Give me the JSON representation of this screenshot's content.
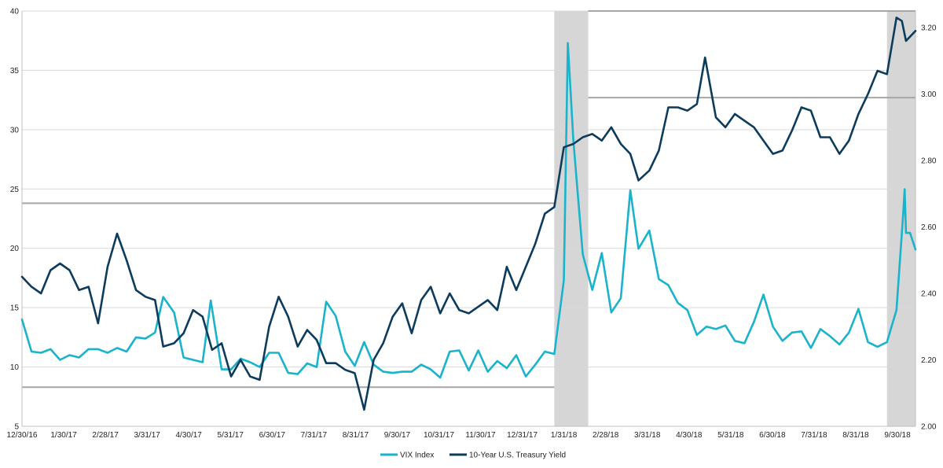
{
  "chart_data": {
    "type": "line",
    "title": "",
    "xlabel": "",
    "ylabel": "",
    "x_tick_labels": [
      "12/30/16",
      "1/30/17",
      "2/28/17",
      "3/31/17",
      "4/30/17",
      "5/31/17",
      "6/30/17",
      "7/31/17",
      "8/31/17",
      "9/30/17",
      "10/31/17",
      "11/30/17",
      "12/31/17",
      "1/31/18",
      "2/28/18",
      "3/31/18",
      "4/30/18",
      "5/31/18",
      "6/30/18",
      "7/31/18",
      "8/31/18",
      "9/30/18"
    ],
    "x_range": [
      "2016-12-30",
      "2018-10-19"
    ],
    "y_left": {
      "min": 5,
      "max": 40,
      "ticks": [
        5,
        10,
        15,
        20,
        25,
        30,
        35,
        40
      ],
      "series": "VIX Index"
    },
    "y_right": {
      "min": 2.0,
      "max": 3.25,
      "ticks": [
        "2.00",
        "2.20",
        "2.40",
        "2.60",
        "2.80",
        "3.00",
        "3.20"
      ],
      "series": "10-Year U.S. Treasury Yield"
    },
    "grid": true,
    "legend_position": "bottom",
    "shaded_periods": [
      {
        "start": "2018-01-26",
        "end": "2018-02-20"
      },
      {
        "start": "2018-09-28",
        "end": "2018-10-19"
      }
    ],
    "reference_lines": [
      {
        "axis": "left",
        "value": 23.8,
        "start": "2016-12-30",
        "end": "2018-01-26"
      },
      {
        "axis": "left",
        "value": 8.3,
        "start": "2016-12-30",
        "end": "2018-01-26"
      },
      {
        "axis": "left",
        "value": 40,
        "start": "2018-02-20",
        "end": "2018-10-19"
      },
      {
        "axis": "left",
        "value": 32.7,
        "start": "2018-02-20",
        "end": "2018-10-19"
      }
    ],
    "series": [
      {
        "name": "VIX Index",
        "axis": "left",
        "color": "#1ab3cc",
        "points": [
          [
            "2016-12-30",
            14.0
          ],
          [
            "2017-01-06",
            11.3
          ],
          [
            "2017-01-13",
            11.2
          ],
          [
            "2017-01-20",
            11.5
          ],
          [
            "2017-01-27",
            10.6
          ],
          [
            "2017-02-03",
            11.0
          ],
          [
            "2017-02-10",
            10.8
          ],
          [
            "2017-02-17",
            11.5
          ],
          [
            "2017-02-24",
            11.5
          ],
          [
            "2017-03-03",
            11.2
          ],
          [
            "2017-03-10",
            11.6
          ],
          [
            "2017-03-17",
            11.3
          ],
          [
            "2017-03-24",
            12.5
          ],
          [
            "2017-03-31",
            12.4
          ],
          [
            "2017-04-07",
            12.9
          ],
          [
            "2017-04-13",
            15.9
          ],
          [
            "2017-04-21",
            14.6
          ],
          [
            "2017-04-28",
            10.8
          ],
          [
            "2017-05-05",
            10.6
          ],
          [
            "2017-05-12",
            10.4
          ],
          [
            "2017-05-18",
            15.6
          ],
          [
            "2017-05-26",
            9.8
          ],
          [
            "2017-06-02",
            9.8
          ],
          [
            "2017-06-09",
            10.7
          ],
          [
            "2017-06-16",
            10.4
          ],
          [
            "2017-06-23",
            10.0
          ],
          [
            "2017-06-30",
            11.2
          ],
          [
            "2017-07-07",
            11.2
          ],
          [
            "2017-07-14",
            9.5
          ],
          [
            "2017-07-21",
            9.4
          ],
          [
            "2017-07-28",
            10.3
          ],
          [
            "2017-08-04",
            10.0
          ],
          [
            "2017-08-11",
            15.5
          ],
          [
            "2017-08-18",
            14.3
          ],
          [
            "2017-08-25",
            11.3
          ],
          [
            "2017-09-01",
            10.1
          ],
          [
            "2017-09-08",
            12.1
          ],
          [
            "2017-09-15",
            10.2
          ],
          [
            "2017-09-22",
            9.6
          ],
          [
            "2017-09-29",
            9.5
          ],
          [
            "2017-10-06",
            9.6
          ],
          [
            "2017-10-13",
            9.6
          ],
          [
            "2017-10-20",
            10.2
          ],
          [
            "2017-10-27",
            9.8
          ],
          [
            "2017-11-03",
            9.1
          ],
          [
            "2017-11-10",
            11.3
          ],
          [
            "2017-11-17",
            11.4
          ],
          [
            "2017-11-24",
            9.7
          ],
          [
            "2017-12-01",
            11.4
          ],
          [
            "2017-12-08",
            9.6
          ],
          [
            "2017-12-15",
            10.5
          ],
          [
            "2017-12-22",
            9.9
          ],
          [
            "2017-12-29",
            11.0
          ],
          [
            "2018-01-05",
            9.2
          ],
          [
            "2018-01-12",
            10.2
          ],
          [
            "2018-01-19",
            11.3
          ],
          [
            "2018-01-26",
            11.1
          ],
          [
            "2018-02-02",
            17.3
          ],
          [
            "2018-02-05",
            37.3
          ],
          [
            "2018-02-09",
            29.1
          ],
          [
            "2018-02-16",
            19.5
          ],
          [
            "2018-02-23",
            16.5
          ],
          [
            "2018-03-02",
            19.6
          ],
          [
            "2018-03-09",
            14.6
          ],
          [
            "2018-03-16",
            15.8
          ],
          [
            "2018-03-23",
            24.9
          ],
          [
            "2018-03-29",
            19.97
          ],
          [
            "2018-04-06",
            21.5
          ],
          [
            "2018-04-13",
            17.4
          ],
          [
            "2018-04-20",
            16.9
          ],
          [
            "2018-04-27",
            15.4
          ],
          [
            "2018-05-04",
            14.8
          ],
          [
            "2018-05-11",
            12.7
          ],
          [
            "2018-05-18",
            13.4
          ],
          [
            "2018-05-25",
            13.2
          ],
          [
            "2018-06-01",
            13.5
          ],
          [
            "2018-06-08",
            12.2
          ],
          [
            "2018-06-15",
            12.0
          ],
          [
            "2018-06-22",
            13.8
          ],
          [
            "2018-06-29",
            16.1
          ],
          [
            "2018-07-06",
            13.4
          ],
          [
            "2018-07-13",
            12.2
          ],
          [
            "2018-07-20",
            12.9
          ],
          [
            "2018-07-27",
            13.0
          ],
          [
            "2018-08-03",
            11.6
          ],
          [
            "2018-08-10",
            13.2
          ],
          [
            "2018-08-17",
            12.6
          ],
          [
            "2018-08-24",
            11.9
          ],
          [
            "2018-08-31",
            12.9
          ],
          [
            "2018-09-07",
            14.9
          ],
          [
            "2018-09-14",
            12.1
          ],
          [
            "2018-09-21",
            11.7
          ],
          [
            "2018-09-28",
            12.1
          ],
          [
            "2018-10-05",
            14.8
          ],
          [
            "2018-10-10",
            22.96
          ],
          [
            "2018-10-11",
            24.98
          ],
          [
            "2018-10-12",
            21.3
          ],
          [
            "2018-10-15",
            21.3
          ],
          [
            "2018-10-19",
            19.9
          ]
        ]
      },
      {
        "name": "10-Year U.S. Treasury Yield",
        "axis": "right",
        "color": "#0d3b5c",
        "points": [
          [
            "2016-12-30",
            2.45
          ],
          [
            "2017-01-06",
            2.42
          ],
          [
            "2017-01-13",
            2.4
          ],
          [
            "2017-01-20",
            2.47
          ],
          [
            "2017-01-27",
            2.49
          ],
          [
            "2017-02-03",
            2.47
          ],
          [
            "2017-02-10",
            2.41
          ],
          [
            "2017-02-17",
            2.42
          ],
          [
            "2017-02-24",
            2.31
          ],
          [
            "2017-03-03",
            2.48
          ],
          [
            "2017-03-10",
            2.58
          ],
          [
            "2017-03-17",
            2.5
          ],
          [
            "2017-03-24",
            2.41
          ],
          [
            "2017-03-31",
            2.39
          ],
          [
            "2017-04-07",
            2.38
          ],
          [
            "2017-04-13",
            2.24
          ],
          [
            "2017-04-21",
            2.25
          ],
          [
            "2017-04-28",
            2.28
          ],
          [
            "2017-05-05",
            2.35
          ],
          [
            "2017-05-12",
            2.33
          ],
          [
            "2017-05-19",
            2.23
          ],
          [
            "2017-05-26",
            2.25
          ],
          [
            "2017-06-02",
            2.15
          ],
          [
            "2017-06-09",
            2.2
          ],
          [
            "2017-06-16",
            2.15
          ],
          [
            "2017-06-23",
            2.14
          ],
          [
            "2017-06-30",
            2.3
          ],
          [
            "2017-07-07",
            2.39
          ],
          [
            "2017-07-14",
            2.33
          ],
          [
            "2017-07-21",
            2.24
          ],
          [
            "2017-07-28",
            2.29
          ],
          [
            "2017-08-04",
            2.26
          ],
          [
            "2017-08-11",
            2.19
          ],
          [
            "2017-08-18",
            2.19
          ],
          [
            "2017-08-25",
            2.17
          ],
          [
            "2017-09-01",
            2.16
          ],
          [
            "2017-09-08",
            2.05
          ],
          [
            "2017-09-15",
            2.2
          ],
          [
            "2017-09-22",
            2.25
          ],
          [
            "2017-09-29",
            2.33
          ],
          [
            "2017-10-06",
            2.37
          ],
          [
            "2017-10-13",
            2.28
          ],
          [
            "2017-10-20",
            2.38
          ],
          [
            "2017-10-27",
            2.42
          ],
          [
            "2017-11-03",
            2.34
          ],
          [
            "2017-11-10",
            2.4
          ],
          [
            "2017-11-17",
            2.35
          ],
          [
            "2017-11-24",
            2.34
          ],
          [
            "2017-12-01",
            2.36
          ],
          [
            "2017-12-08",
            2.38
          ],
          [
            "2017-12-15",
            2.35
          ],
          [
            "2017-12-22",
            2.48
          ],
          [
            "2017-12-29",
            2.41
          ],
          [
            "2018-01-05",
            2.48
          ],
          [
            "2018-01-12",
            2.55
          ],
          [
            "2018-01-19",
            2.64
          ],
          [
            "2018-01-26",
            2.66
          ],
          [
            "2018-02-02",
            2.84
          ],
          [
            "2018-02-09",
            2.85
          ],
          [
            "2018-02-16",
            2.87
          ],
          [
            "2018-02-23",
            2.88
          ],
          [
            "2018-03-02",
            2.86
          ],
          [
            "2018-03-09",
            2.9
          ],
          [
            "2018-03-16",
            2.85
          ],
          [
            "2018-03-23",
            2.82
          ],
          [
            "2018-03-29",
            2.74
          ],
          [
            "2018-04-06",
            2.77
          ],
          [
            "2018-04-13",
            2.83
          ],
          [
            "2018-04-20",
            2.96
          ],
          [
            "2018-04-27",
            2.96
          ],
          [
            "2018-05-04",
            2.95
          ],
          [
            "2018-05-11",
            2.97
          ],
          [
            "2018-05-17",
            3.11
          ],
          [
            "2018-05-25",
            2.93
          ],
          [
            "2018-06-01",
            2.9
          ],
          [
            "2018-06-08",
            2.94
          ],
          [
            "2018-06-15",
            2.92
          ],
          [
            "2018-06-22",
            2.9
          ],
          [
            "2018-06-29",
            2.86
          ],
          [
            "2018-07-06",
            2.82
          ],
          [
            "2018-07-13",
            2.83
          ],
          [
            "2018-07-20",
            2.89
          ],
          [
            "2018-07-27",
            2.96
          ],
          [
            "2018-08-03",
            2.95
          ],
          [
            "2018-08-10",
            2.87
          ],
          [
            "2018-08-17",
            2.87
          ],
          [
            "2018-08-24",
            2.82
          ],
          [
            "2018-08-31",
            2.86
          ],
          [
            "2018-09-07",
            2.94
          ],
          [
            "2018-09-14",
            3.0
          ],
          [
            "2018-09-21",
            3.07
          ],
          [
            "2018-09-28",
            3.06
          ],
          [
            "2018-10-05",
            3.23
          ],
          [
            "2018-10-09",
            3.22
          ],
          [
            "2018-10-12",
            3.16
          ],
          [
            "2018-10-19",
            3.19
          ]
        ]
      }
    ]
  }
}
